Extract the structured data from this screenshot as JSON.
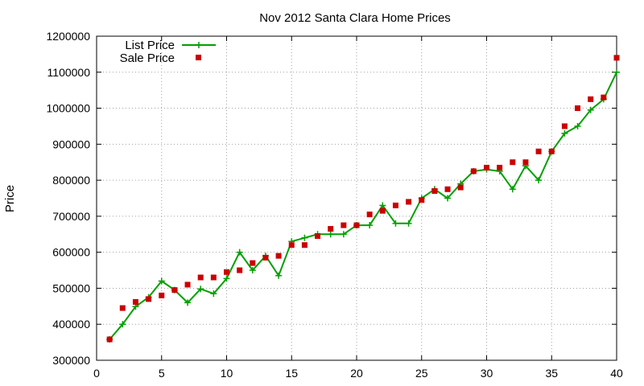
{
  "chart_data": {
    "type": "line",
    "title": "Nov 2012 Santa Clara Home Prices",
    "xlabel": "",
    "ylabel": "Price",
    "xlim": [
      0,
      40
    ],
    "ylim": [
      300000,
      1200000
    ],
    "xticks": [
      0,
      5,
      10,
      15,
      20,
      25,
      30,
      35,
      40
    ],
    "yticks": [
      300000,
      400000,
      500000,
      600000,
      700000,
      800000,
      900000,
      1000000,
      1100000,
      1200000
    ],
    "grid": true,
    "legend_position": "top-left",
    "series": [
      {
        "name": "List Price",
        "style": "line-plus",
        "color": "#00a000",
        "x": [
          1,
          2,
          3,
          4,
          5,
          6,
          7,
          8,
          9,
          10,
          11,
          12,
          13,
          14,
          15,
          16,
          17,
          18,
          19,
          20,
          21,
          22,
          23,
          24,
          25,
          26,
          27,
          28,
          29,
          30,
          31,
          32,
          33,
          34,
          35,
          36,
          37,
          38,
          39,
          40
        ],
        "y": [
          358000,
          400000,
          449000,
          475000,
          520000,
          495000,
          460000,
          498000,
          485000,
          527000,
          600000,
          550000,
          590000,
          535000,
          630000,
          640000,
          650000,
          650000,
          650000,
          675000,
          675000,
          730000,
          680000,
          680000,
          750000,
          775000,
          750000,
          790000,
          825000,
          830000,
          825000,
          775000,
          840000,
          800000,
          880000,
          930000,
          950000,
          995000,
          1025000,
          1100000
        ]
      },
      {
        "name": "Sale Price",
        "style": "square",
        "color": "#cc0000",
        "x": [
          1,
          2,
          3,
          4,
          5,
          6,
          7,
          8,
          9,
          10,
          11,
          12,
          13,
          14,
          15,
          16,
          17,
          18,
          19,
          20,
          21,
          22,
          23,
          24,
          25,
          26,
          27,
          28,
          29,
          30,
          31,
          32,
          33,
          34,
          35,
          36,
          37,
          38,
          39,
          40
        ],
        "y": [
          358000,
          445000,
          462000,
          470000,
          480000,
          495000,
          510000,
          530000,
          530000,
          545000,
          550000,
          570000,
          585000,
          590000,
          620000,
          620000,
          645000,
          665000,
          675000,
          675000,
          705000,
          715000,
          730000,
          740000,
          745000,
          770000,
          775000,
          780000,
          825000,
          835000,
          835000,
          850000,
          850000,
          880000,
          880000,
          950000,
          1000000,
          1025000,
          1030000,
          1140000
        ]
      }
    ]
  }
}
